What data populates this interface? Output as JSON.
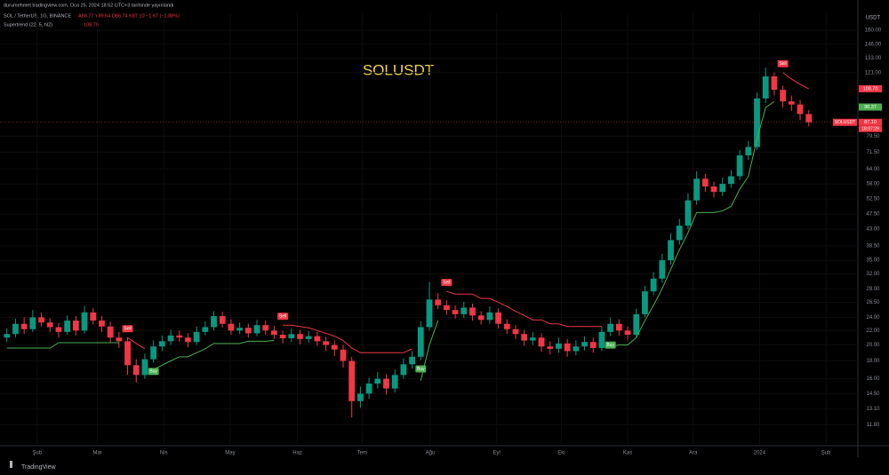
{
  "header": {
    "published": "durumehmet tradingview.com, Oca 25, 2024 18:52 UTC+3 tarihinde yayınlandı",
    "symbol": "SOL / TetherUS, 1G, BINANCE",
    "ohlc": "A88.77 Y89.64 D86.74 K87.10 −1.67 (−1.88%)",
    "indicator": "Supertrend (22, 5, hl2)",
    "indicator_value": "108.70",
    "footer": "TradingView"
  },
  "chart_data": {
    "type": "candlestick",
    "title": "SOLUSDT",
    "y_axis_label": "USDT",
    "log_scale": true,
    "ylim": [
      10.4,
      179
    ],
    "xlim": [
      -0.8,
      98.7
    ],
    "yticks": [
      {
        "value": 11.8,
        "label": "11.80"
      },
      {
        "value": 13.1,
        "label": "13.10"
      },
      {
        "value": 14.5,
        "label": "14.50"
      },
      {
        "value": 16,
        "label": "16.00"
      },
      {
        "value": 18,
        "label": "18.00"
      },
      {
        "value": 20,
        "label": "20.00"
      },
      {
        "value": 22,
        "label": "22.00"
      },
      {
        "value": 24,
        "label": "24.00"
      },
      {
        "value": 26.5,
        "label": "26.50"
      },
      {
        "value": 29,
        "label": "29.00"
      },
      {
        "value": 32,
        "label": "32.00"
      },
      {
        "value": 35,
        "label": "35.00"
      },
      {
        "value": 38.5,
        "label": "38.50"
      },
      {
        "value": 43,
        "label": "43.00"
      },
      {
        "value": 47.5,
        "label": "47.50"
      },
      {
        "value": 52.5,
        "label": "52.50"
      },
      {
        "value": 58,
        "label": "58.00"
      },
      {
        "value": 64,
        "label": "64.00"
      },
      {
        "value": 71.5,
        "label": "71.50"
      },
      {
        "value": 79.5,
        "label": "79.50"
      },
      {
        "value": 121,
        "label": "121.00"
      },
      {
        "value": 133,
        "label": "133.00"
      },
      {
        "value": 146,
        "label": "146.00"
      },
      {
        "value": 160,
        "label": "160.00"
      }
    ],
    "xticks": [
      {
        "value": 3.5,
        "label": "Şub"
      },
      {
        "value": 10.5,
        "label": "Mar"
      },
      {
        "value": 18.2,
        "label": "Nis"
      },
      {
        "value": 25.9,
        "label": "May"
      },
      {
        "value": 33.7,
        "label": "Haz"
      },
      {
        "value": 41.2,
        "label": "Tem"
      },
      {
        "value": 49.1,
        "label": "Ağu"
      },
      {
        "value": 56.8,
        "label": "Eyl"
      },
      {
        "value": 64.3,
        "label": "Eki"
      },
      {
        "value": 72,
        "label": "Kas"
      },
      {
        "value": 79.6,
        "label": "Ara"
      },
      {
        "value": 87.3,
        "label": "2024"
      },
      {
        "value": 95,
        "label": "Şub"
      }
    ],
    "up_color": "#089981",
    "down_color": "#f23645",
    "open": [
      21.0,
      21.5,
      23.0,
      22.2,
      24.0,
      23.2,
      22.5,
      21.8,
      23.5,
      22.0,
      24.8,
      23.5,
      22.6,
      21.0,
      20.5,
      17.5,
      16.4,
      18.2,
      19.8,
      20.5,
      21.3,
      21.0,
      20.4,
      21.8,
      22.5,
      24.2,
      23.0,
      22.0,
      22.4,
      21.6,
      22.8,
      22.0,
      21.4,
      20.9,
      21.5,
      20.8,
      21.2,
      20.5,
      20.0,
      19.4,
      18.0,
      13.8,
      14.5,
      15.5,
      16.0,
      15.0,
      16.4,
      17.6,
      18.5,
      22.5,
      27.0,
      26.0,
      25.2,
      24.5,
      25.6,
      24.3,
      23.6,
      24.8,
      23.0,
      22.2,
      21.5,
      20.6,
      21.0,
      19.8,
      19.5,
      20.2,
      19.2,
      19.8,
      20.4,
      19.6,
      21.8,
      23.0,
      22.0,
      21.4,
      24.5,
      28.5,
      31.0,
      35.0,
      40.0,
      44.0,
      52.0,
      60.0,
      57.0,
      55.0,
      58.0,
      61.0,
      70.0,
      74.0,
      102.0,
      118.0,
      108.0,
      100.0,
      98.0,
      92.0
    ],
    "high": [
      22.3,
      23.8,
      24.0,
      25.2,
      24.8,
      23.9,
      23.1,
      24.3,
      24.2,
      25.9,
      25.5,
      24.2,
      23.3,
      21.8,
      21.0,
      18.2,
      18.9,
      20.6,
      21.3,
      22.1,
      22.0,
      21.6,
      22.6,
      23.4,
      25.0,
      24.9,
      23.7,
      23.2,
      23.0,
      23.6,
      23.5,
      22.7,
      22.0,
      22.3,
      22.1,
      21.9,
      21.8,
      21.1,
      20.6,
      20.0,
      18.5,
      15.2,
      16.1,
      16.7,
      16.5,
      17.0,
      18.3,
      19.2,
      23.4,
      30.3,
      28.2,
      26.9,
      26.0,
      26.6,
      26.3,
      25.0,
      25.8,
      25.5,
      23.7,
      22.8,
      22.1,
      21.8,
      21.6,
      20.5,
      21.0,
      20.8,
      20.6,
      21.2,
      21.0,
      22.6,
      24.0,
      23.7,
      22.6,
      25.4,
      29.6,
      32.4,
      36.5,
      41.8,
      46.0,
      54.5,
      63.0,
      62.0,
      58.8,
      60.5,
      63.5,
      72.5,
      77.0,
      106.0,
      125.0,
      121.0,
      111.0,
      104.0,
      101.0,
      94.5
    ],
    "low": [
      20.4,
      21.0,
      21.5,
      21.8,
      22.6,
      21.8,
      21.0,
      21.4,
      21.3,
      21.6,
      22.9,
      21.8,
      20.3,
      19.6,
      16.4,
      15.6,
      16.0,
      17.8,
      19.2,
      20.0,
      20.4,
      19.7,
      20.0,
      21.3,
      22.0,
      22.4,
      21.4,
      21.5,
      21.0,
      21.2,
      21.4,
      20.8,
      20.2,
      20.4,
      20.1,
      20.3,
      19.9,
      19.3,
      18.6,
      17.2,
      12.4,
      13.2,
      14.0,
      15.0,
      14.4,
      14.6,
      16.0,
      17.1,
      18.1,
      22.0,
      25.3,
      24.4,
      23.8,
      23.9,
      23.5,
      22.9,
      23.0,
      22.3,
      21.5,
      20.8,
      19.9,
      20.0,
      19.1,
      18.8,
      19.0,
      18.5,
      18.7,
      19.3,
      19.0,
      19.2,
      21.2,
      21.3,
      20.7,
      21.0,
      24.0,
      27.8,
      30.2,
      34.0,
      38.8,
      43.0,
      50.5,
      55.0,
      53.0,
      53.5,
      56.5,
      59.5,
      68.0,
      72.5,
      99.0,
      104.0,
      96.0,
      94.0,
      88.5,
      84.8
    ],
    "close": [
      21.5,
      23.0,
      22.2,
      24.0,
      23.2,
      22.5,
      21.8,
      23.5,
      22.0,
      24.8,
      23.5,
      22.6,
      21.0,
      20.5,
      17.5,
      16.4,
      18.2,
      19.8,
      20.5,
      21.3,
      21.0,
      20.4,
      21.8,
      22.5,
      24.2,
      23.0,
      22.0,
      22.4,
      21.6,
      22.8,
      22.0,
      21.4,
      20.9,
      21.5,
      20.8,
      21.2,
      20.5,
      20.0,
      19.4,
      18.0,
      13.8,
      14.5,
      15.5,
      16.0,
      15.0,
      16.4,
      17.6,
      18.5,
      22.5,
      27.0,
      26.0,
      25.2,
      24.5,
      25.6,
      24.3,
      23.6,
      24.8,
      23.0,
      22.2,
      21.5,
      20.6,
      21.0,
      19.8,
      19.5,
      20.2,
      19.2,
      19.8,
      20.4,
      19.6,
      21.8,
      23.0,
      22.0,
      21.4,
      24.5,
      28.5,
      31.0,
      35.0,
      40.0,
      44.0,
      52.0,
      60.0,
      57.0,
      55.0,
      58.0,
      61.0,
      70.0,
      74.0,
      102.0,
      118.0,
      108.0,
      100.0,
      98.0,
      92.0,
      87.1
    ],
    "supertrend": [
      {
        "name": "up",
        "color": "#4caf50",
        "values": [
          19.6,
          19.6,
          19.6,
          19.6,
          19.6,
          19.6,
          20.3,
          20.3,
          20.3,
          20.3,
          20.3,
          20.3,
          20.3,
          20.3,
          null,
          null,
          null,
          17.0,
          17.5,
          18.0,
          18.5,
          18.5,
          19.0,
          19.5,
          20.2,
          20.2,
          20.2,
          20.2,
          20.5,
          20.5,
          20.5,
          20.6,
          null,
          null,
          null,
          null,
          null,
          null,
          null,
          null,
          null,
          null,
          null,
          null,
          null,
          null,
          null,
          null,
          15.8,
          20.0,
          23.5,
          null,
          null,
          null,
          null,
          null,
          null,
          null,
          null,
          null,
          null,
          null,
          null,
          null,
          null,
          null,
          null,
          null,
          null,
          null,
          19.8,
          20.0,
          20.0,
          21.0,
          23.5,
          26.0,
          29.0,
          33.0,
          37.5,
          42.0,
          48.0,
          48.0,
          48.0,
          48.5,
          50.0,
          56.0,
          61.0,
          78.0,
          96.0,
          100.0,
          null,
          null,
          null,
          null
        ]
      },
      {
        "name": "down",
        "color": "#f23645",
        "values": [
          null,
          null,
          null,
          null,
          null,
          null,
          null,
          null,
          null,
          null,
          null,
          null,
          null,
          null,
          21.0,
          20.2,
          19.5,
          null,
          null,
          null,
          null,
          null,
          null,
          null,
          null,
          null,
          null,
          null,
          null,
          null,
          null,
          null,
          22.8,
          22.8,
          22.6,
          22.4,
          22.0,
          21.6,
          21.2,
          20.6,
          19.6,
          19.0,
          19.0,
          19.0,
          19.0,
          19.0,
          19.0,
          19.5,
          null,
          null,
          null,
          28.5,
          28.0,
          28.0,
          28.0,
          27.2,
          27.2,
          26.5,
          25.8,
          25.0,
          24.3,
          23.6,
          23.6,
          23.0,
          23.0,
          22.6,
          22.6,
          22.6,
          22.6,
          22.6,
          null,
          null,
          null,
          null,
          null,
          null,
          null,
          null,
          null,
          null,
          null,
          null,
          null,
          null,
          null,
          null,
          null,
          null,
          null,
          null,
          121.0,
          116.0,
          112.0,
          108.7
        ]
      }
    ],
    "signal_labels": {
      "buy": "Buy",
      "sell": "Sell"
    },
    "price_tags": [
      {
        "label": "108.70",
        "value": 108.7,
        "color": "#f23645"
      },
      {
        "label": "96.37",
        "value": 96.37,
        "color": "#4caf50"
      },
      {
        "label": "87.10",
        "value": 87.1,
        "color": "#f23645",
        "name": "SOLUSDT",
        "countdown": "18:07:29"
      }
    ]
  }
}
